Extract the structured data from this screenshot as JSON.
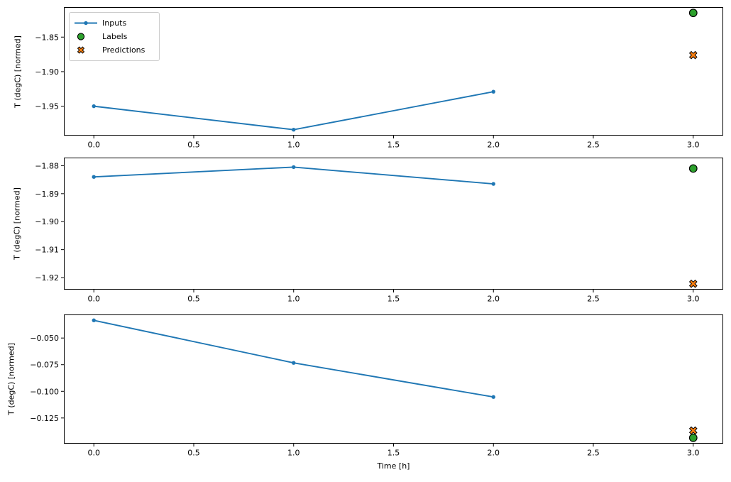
{
  "colors": {
    "inputs_line": "#1f77b4",
    "labels_marker": "#2ca02c",
    "predictions_marker": "#ff7f0e",
    "marker_edge": "#000000",
    "legend_border": "#cccccc",
    "text": "#000000",
    "background": "#ffffff"
  },
  "legend": {
    "items": [
      "Inputs",
      "Labels",
      "Predictions"
    ]
  },
  "chart_data": {
    "type": "line",
    "layout": "3 vertically stacked subplots, shared x range, legend top-left of first subplot, grid off",
    "xlabel": "Time [h]",
    "charts": [
      {
        "ylabel": "T (degC) [normed]",
        "xlim": [
          -0.15,
          3.15
        ],
        "ylim": [
          -1.9925,
          -1.8066
        ],
        "x_ticks": {
          "values": [
            0,
            0.5,
            1,
            1.5,
            2,
            2.5,
            3
          ],
          "labels": [
            "0.0",
            "0.5",
            "1.0",
            "1.5",
            "2.0",
            "2.5",
            "3.0"
          ]
        },
        "y_ticks": {
          "values": [
            -1.85,
            -1.9,
            -1.95
          ],
          "labels": [
            "−1.85",
            "−1.90",
            "−1.95"
          ]
        },
        "series": [
          {
            "name": "Inputs",
            "kind": "line",
            "x": [
              0,
              1,
              2
            ],
            "y": [
              -1.95,
              -1.984,
              -1.929
            ]
          },
          {
            "name": "Labels",
            "kind": "circle",
            "x": [
              3
            ],
            "y": [
              -1.815
            ]
          },
          {
            "name": "Predictions",
            "kind": "x",
            "x": [
              3
            ],
            "y": [
              -1.876
            ]
          }
        ]
      },
      {
        "ylabel": "T (degC) [normed]",
        "xlim": [
          -0.15,
          3.15
        ],
        "ylim": [
          -1.9243,
          -1.8771
        ],
        "x_ticks": {
          "values": [
            0,
            0.5,
            1,
            1.5,
            2,
            2.5,
            3
          ],
          "labels": [
            "0.0",
            "0.5",
            "1.0",
            "1.5",
            "2.0",
            "2.5",
            "3.0"
          ]
        },
        "y_ticks": {
          "values": [
            -1.88,
            -1.89,
            -1.9,
            -1.91,
            -1.92
          ],
          "labels": [
            "−1.88",
            "−1.89",
            "−1.90",
            "−1.91",
            "−1.92"
          ]
        },
        "series": [
          {
            "name": "Inputs",
            "kind": "line",
            "x": [
              0,
              1,
              2
            ],
            "y": [
              -1.884,
              -1.8805,
              -1.8865
            ]
          },
          {
            "name": "Labels",
            "kind": "circle",
            "x": [
              3
            ],
            "y": [
              -1.881
            ]
          },
          {
            "name": "Predictions",
            "kind": "x",
            "x": [
              3
            ],
            "y": [
              -1.9222
            ]
          }
        ]
      },
      {
        "ylabel": "T (degC) [normed]",
        "xlabel": "Time [h]",
        "xlim": [
          -0.15,
          3.15
        ],
        "ylim": [
          -0.1491,
          -0.0279
        ],
        "x_ticks": {
          "values": [
            0,
            0.5,
            1,
            1.5,
            2,
            2.5,
            3
          ],
          "labels": [
            "0.0",
            "0.5",
            "1.0",
            "1.5",
            "2.0",
            "2.5",
            "3.0"
          ]
        },
        "y_ticks": {
          "values": [
            -0.05,
            -0.075,
            -0.1,
            -0.125
          ],
          "labels": [
            "−0.050",
            "−0.075",
            "−0.100",
            "−0.125"
          ]
        },
        "series": [
          {
            "name": "Inputs",
            "kind": "line",
            "x": [
              0,
              1,
              2
            ],
            "y": [
              -0.0334,
              -0.0733,
              -0.1053
            ]
          },
          {
            "name": "Labels",
            "kind": "circle",
            "x": [
              3
            ],
            "y": [
              -0.1436
            ]
          },
          {
            "name": "Predictions",
            "kind": "x",
            "x": [
              3
            ],
            "y": [
              -0.1368
            ]
          }
        ]
      }
    ]
  }
}
